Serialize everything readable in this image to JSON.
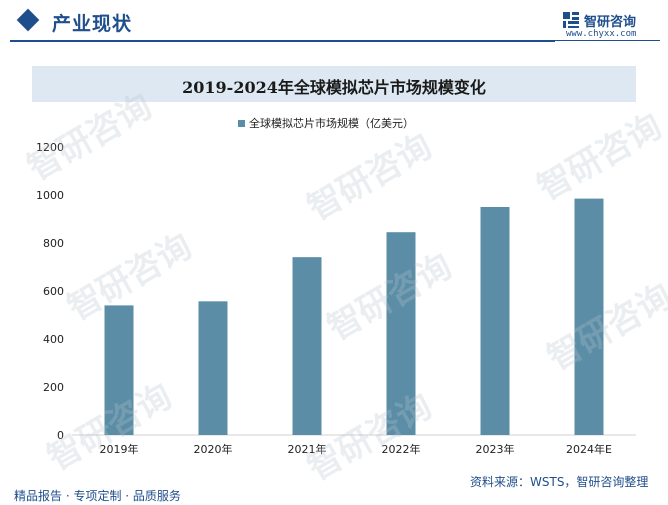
{
  "header": {
    "section_title": "产业现状",
    "brand_name": "智研咨询",
    "brand_url": "www.chyxx.com"
  },
  "chart_data": {
    "type": "bar",
    "title": "2019-2024年全球模拟芯片市场规模变化",
    "categories": [
      "2019年",
      "2020年",
      "2021年",
      "2022年",
      "2023年",
      "2024年E"
    ],
    "series": [
      {
        "name": "全球模拟芯片市场规模（亿美元）",
        "values": [
          540,
          557,
          741,
          845,
          950,
          985
        ]
      }
    ],
    "ylim": [
      0,
      1200
    ],
    "yticks": [
      "0",
      "200",
      "400",
      "600",
      "800",
      "1000",
      "1200"
    ],
    "grid": false,
    "legend_position": "top-center",
    "bar_color": "#5b8ea6"
  },
  "footer": {
    "left": "精品报告 · 专项定制 · 品质服务",
    "right": "资料来源：WSTS，智研咨询整理"
  },
  "watermark_text": "智研咨询"
}
